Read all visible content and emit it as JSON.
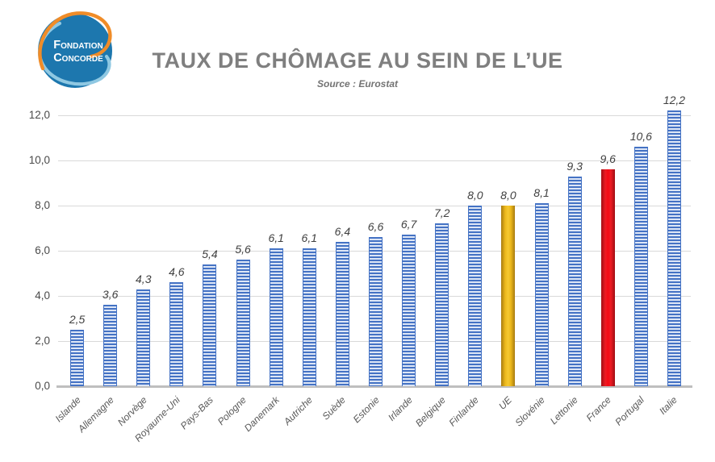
{
  "logo": {
    "line1": "Fondation",
    "line2": "Concorde",
    "circle_color": "#1d77ae",
    "orange_arc_color": "#F08C28",
    "light_blue_arc_color": "#8FC8E2"
  },
  "header": {
    "title": "TAUX DE CHÔMAGE AU SEIN DE L’UE",
    "subtitle": "Source : Eurostat"
  },
  "chart_data": {
    "type": "bar",
    "title": "TAUX DE CHÔMAGE AU SEIN DE L’UE",
    "subtitle": "Source : Eurostat",
    "unit": "percent",
    "categories": [
      "Islande",
      "Allemagne",
      "Norvège",
      "Royaume-Uni",
      "Pays-Bas",
      "Pologne",
      "Danemark",
      "Autriche",
      "Suède",
      "Estonie",
      "Irlande",
      "Belgique",
      "Finlande",
      "UE",
      "Slovénie",
      "Lettonie",
      "France",
      "Portugal",
      "Italie"
    ],
    "values": [
      2.5,
      3.6,
      4.3,
      4.6,
      5.4,
      5.6,
      6.1,
      6.1,
      6.4,
      6.6,
      6.7,
      7.2,
      8.0,
      8.0,
      8.1,
      9.3,
      9.6,
      10.6,
      12.2
    ],
    "value_labels": [
      "2,5",
      "3,6",
      "4,3",
      "4,6",
      "5,4",
      "5,6",
      "6,1",
      "6,1",
      "6,4",
      "6,6",
      "6,7",
      "7,2",
      "8,0",
      "8,0",
      "8,1",
      "9,3",
      "9,6",
      "10,6",
      "12,2"
    ],
    "ylim": [
      0,
      13
    ],
    "yticks": [
      0,
      2,
      4,
      6,
      8,
      10,
      12
    ],
    "ytick_labels": [
      "0,0",
      "2,0",
      "4,0",
      "6,0",
      "8,0",
      "10,0",
      "12,0"
    ],
    "grid": "horizontal",
    "legend": "none",
    "highlight": {
      "UE": "gold",
      "France": "red"
    },
    "colors": {
      "bar_blue": "#4472C4",
      "bar_blue_stripe": "#DDE6F6",
      "bar_gold": "#EDB91C",
      "bar_gold_light": "#F6C832",
      "bar_gold_edge": "#A87B10",
      "bar_red": "#EC1C24",
      "bar_red_bright": "#F50A14",
      "bar_red_edge": "#A00D13",
      "gridline": "#D9D9D9",
      "axis_line": "#BFBFBF",
      "label_text": "#3F3F3F",
      "tick_text": "#4A4A4A",
      "category_text": "#595959",
      "title_text": "#7F7F7F"
    }
  }
}
